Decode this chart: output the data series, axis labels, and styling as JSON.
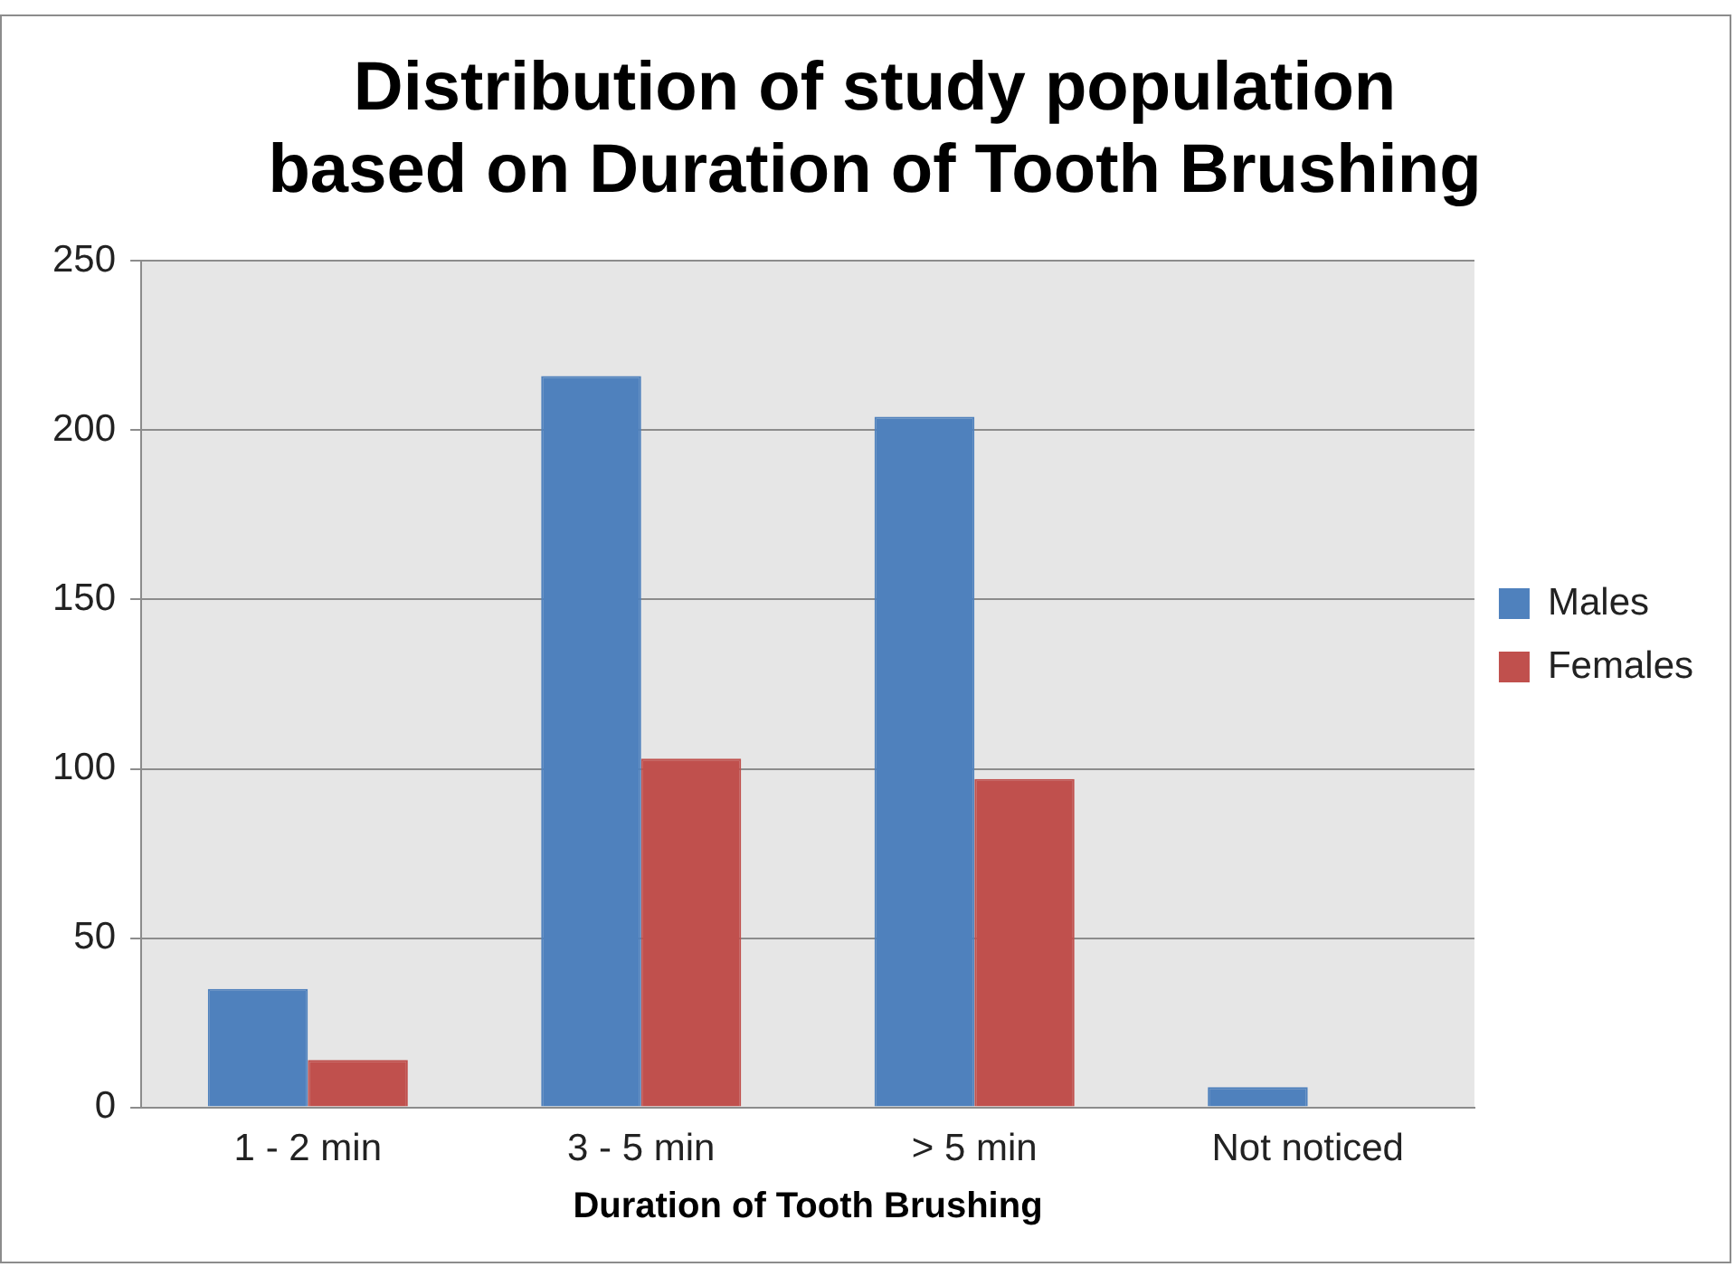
{
  "chart_data": {
    "type": "bar",
    "title": "Distribution of study population based on Duration of Tooth Brushing",
    "xlabel": "Duration of Tooth Brushing",
    "categories": [
      "1 - 2 min",
      "3 - 5 min",
      "> 5 min",
      "Not noticed"
    ],
    "series": [
      {
        "name": "Males",
        "color": "#4f81bd",
        "values": [
          35,
          216,
          204,
          6
        ]
      },
      {
        "name": "Females",
        "color": "#c0504d",
        "values": [
          14,
          103,
          97,
          0
        ]
      }
    ],
    "ylim": [
      0,
      250
    ],
    "yticks": [
      0,
      50,
      100,
      150,
      200,
      250
    ],
    "grid": "y",
    "legend": "right"
  }
}
